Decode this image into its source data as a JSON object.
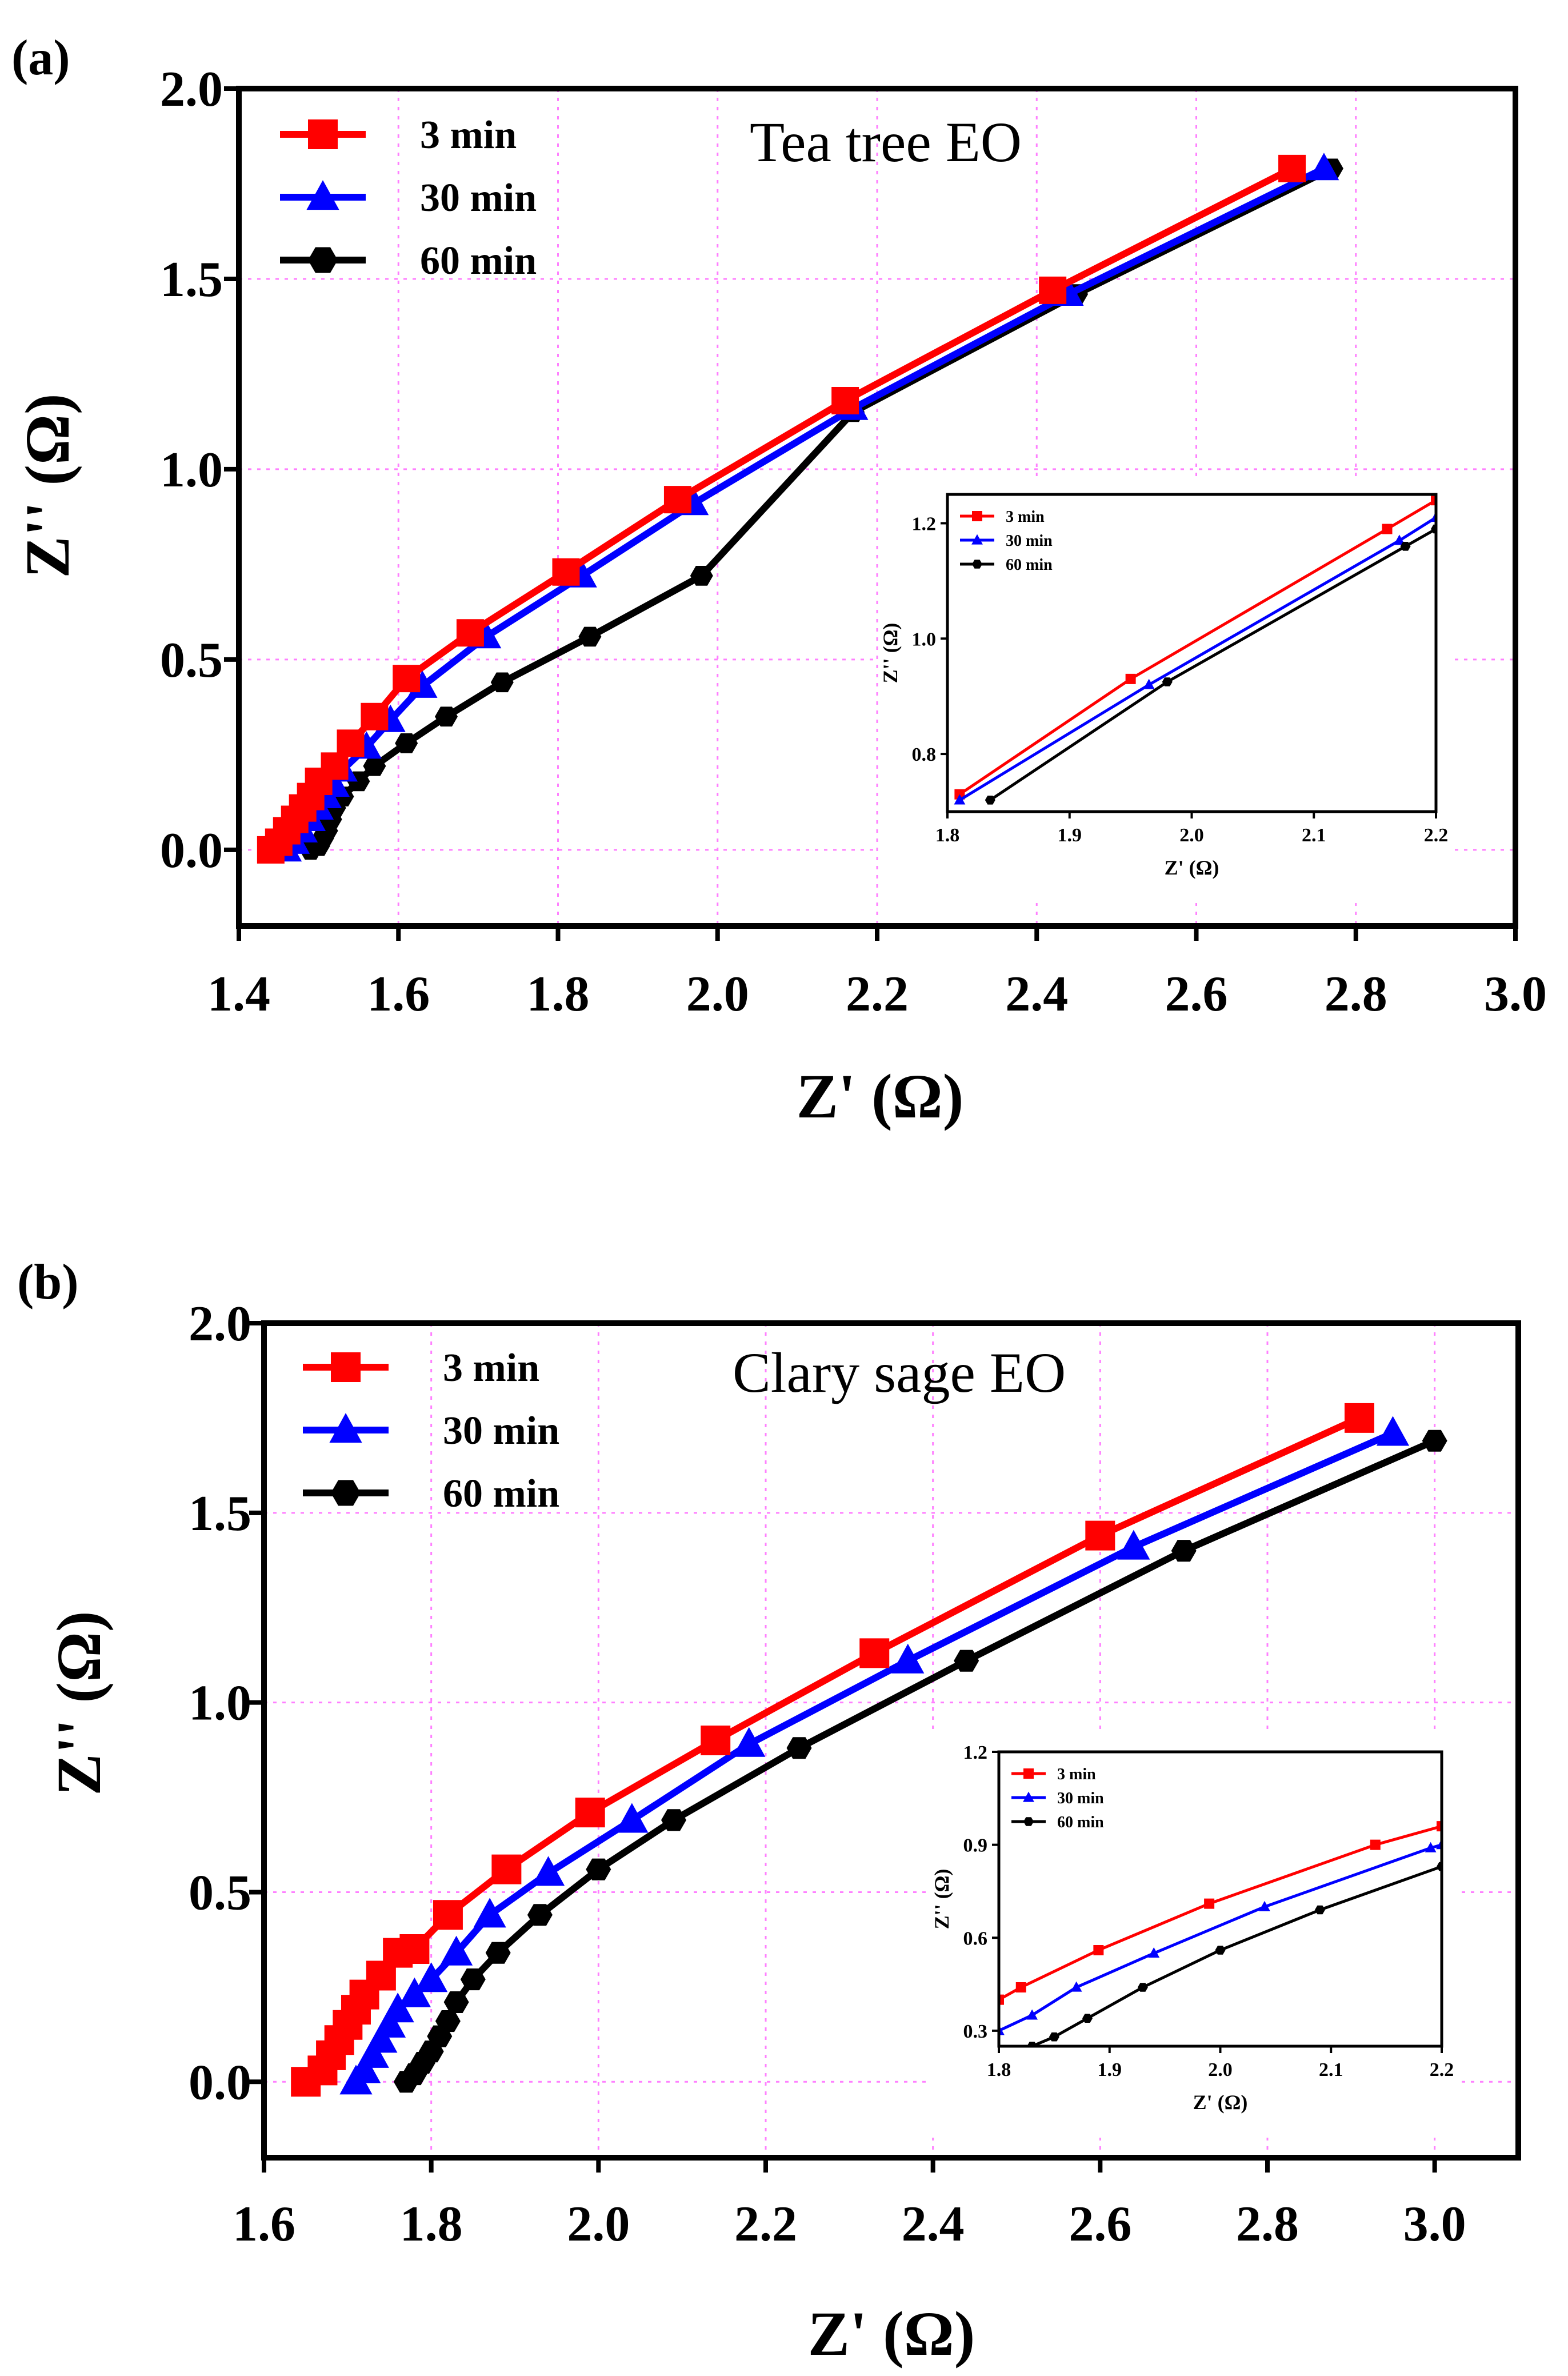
{
  "colors": {
    "3 min": "#ff0000",
    "30 min": "#0000ff",
    "60 min": "#000000",
    "grid": "#ff80ff"
  },
  "chart_data": [
    {
      "panel": "(a)",
      "type": "line",
      "annotation": "Tea tree EO",
      "xlabel": "Z' (Ω)",
      "ylabel": "Z'' (Ω)",
      "xlim": [
        1.4,
        3.0
      ],
      "ylim": [
        -0.2,
        2.0
      ],
      "xticks": [
        "1.4",
        "1.6",
        "1.8",
        "2.0",
        "2.2",
        "2.4",
        "2.6",
        "2.8",
        "3.0"
      ],
      "yticks": [
        "0.0",
        "0.5",
        "1.0",
        "1.5",
        "2.0"
      ],
      "series": [
        {
          "name": "3 min",
          "marker": "square",
          "x": [
            1.44,
            1.45,
            1.46,
            1.47,
            1.48,
            1.49,
            1.5,
            1.52,
            1.54,
            1.57,
            1.61,
            1.69,
            1.81,
            1.95,
            2.16,
            2.42,
            2.72
          ],
          "y": [
            0.0,
            0.02,
            0.05,
            0.08,
            0.11,
            0.14,
            0.18,
            0.22,
            0.28,
            0.35,
            0.45,
            0.57,
            0.73,
            0.92,
            1.18,
            1.47,
            1.79
          ]
        },
        {
          "name": "30 min",
          "marker": "triangle",
          "x": [
            1.46,
            1.47,
            1.48,
            1.49,
            1.5,
            1.51,
            1.52,
            1.53,
            1.56,
            1.59,
            1.63,
            1.71,
            1.83,
            1.97,
            2.17,
            2.44,
            2.76
          ],
          "y": [
            0.0,
            0.02,
            0.05,
            0.08,
            0.11,
            0.14,
            0.17,
            0.21,
            0.27,
            0.34,
            0.43,
            0.56,
            0.72,
            0.91,
            1.16,
            1.46,
            1.79
          ]
        },
        {
          "name": "60 min",
          "marker": "hexagon",
          "x": [
            1.49,
            1.5,
            1.505,
            1.51,
            1.515,
            1.52,
            1.53,
            1.55,
            1.57,
            1.61,
            1.66,
            1.73,
            1.84,
            1.98,
            2.17,
            2.45,
            2.77
          ],
          "y": [
            0.0,
            0.01,
            0.03,
            0.05,
            0.08,
            0.11,
            0.14,
            0.18,
            0.22,
            0.28,
            0.35,
            0.44,
            0.56,
            0.72,
            1.15,
            1.46,
            1.79
          ]
        }
      ],
      "inset": {
        "xlabel": "Z' (Ω)",
        "ylabel": "Z'' (Ω)",
        "xlim": [
          1.8,
          2.2
        ],
        "ylim": [
          0.7,
          1.25
        ],
        "xticks": [
          "1.8",
          "1.9",
          "2.0",
          "2.1",
          "2.2"
        ],
        "yticks": [
          "0.8",
          "1.0",
          "1.2"
        ],
        "series": [
          {
            "name": "3 min",
            "x": [
              1.81,
              1.95,
              2.16,
              2.2
            ],
            "y": [
              0.73,
              0.93,
              1.19,
              1.24
            ]
          },
          {
            "name": "30 min",
            "x": [
              1.81,
              1.965,
              2.17,
              2.2
            ],
            "y": [
              0.72,
              0.92,
              1.17,
              1.21
            ]
          },
          {
            "name": "60 min",
            "x": [
              1.835,
              1.98,
              2.175,
              2.2
            ],
            "y": [
              0.72,
              0.925,
              1.16,
              1.19
            ]
          }
        ]
      }
    },
    {
      "panel": "(b)",
      "type": "line",
      "annotation": "Clary sage EO",
      "xlabel": "Z' (Ω)",
      "ylabel": "Z'' (Ω)",
      "xlim": [
        1.6,
        3.1
      ],
      "ylim": [
        -0.2,
        2.0
      ],
      "xticks": [
        "1.6",
        "1.8",
        "2.0",
        "2.2",
        "2.4",
        "2.6",
        "2.8",
        "3.0"
      ],
      "yticks": [
        "0.0",
        "0.5",
        "1.0",
        "1.5",
        "2.0"
      ],
      "series": [
        {
          "name": "3 min",
          "marker": "square",
          "x": [
            1.65,
            1.67,
            1.68,
            1.69,
            1.7,
            1.71,
            1.72,
            1.74,
            1.76,
            1.78,
            1.82,
            1.89,
            1.99,
            2.14,
            2.33,
            2.6,
            2.91
          ],
          "y": [
            0.0,
            0.03,
            0.07,
            0.11,
            0.15,
            0.19,
            0.23,
            0.28,
            0.34,
            0.35,
            0.44,
            0.56,
            0.71,
            0.9,
            1.13,
            1.44,
            1.75
          ]
        },
        {
          "name": "30 min",
          "marker": "triangle",
          "x": [
            1.71,
            1.72,
            1.73,
            1.74,
            1.75,
            1.76,
            1.78,
            1.8,
            1.83,
            1.87,
            1.94,
            2.04,
            2.18,
            2.37,
            2.64,
            2.95
          ],
          "y": [
            0.0,
            0.03,
            0.07,
            0.11,
            0.15,
            0.19,
            0.23,
            0.27,
            0.34,
            0.44,
            0.55,
            0.69,
            0.89,
            1.11,
            1.41,
            1.71
          ]
        },
        {
          "name": "60 min",
          "marker": "hexagon",
          "x": [
            1.77,
            1.78,
            1.79,
            1.8,
            1.81,
            1.82,
            1.83,
            1.85,
            1.88,
            1.93,
            2.0,
            2.09,
            2.24,
            2.44,
            2.7,
            3.0
          ],
          "y": [
            0.0,
            0.02,
            0.05,
            0.08,
            0.12,
            0.16,
            0.21,
            0.27,
            0.34,
            0.44,
            0.56,
            0.69,
            0.88,
            1.11,
            1.4,
            1.69
          ]
        }
      ],
      "inset": {
        "xlabel": "Z' (Ω)",
        "ylabel": "Z'' (Ω)",
        "xlim": [
          1.8,
          2.2
        ],
        "ylim": [
          0.25,
          1.2
        ],
        "xticks": [
          "1.8",
          "1.9",
          "2.0",
          "2.1",
          "2.2"
        ],
        "yticks": [
          "0.3",
          "0.6",
          "0.9",
          "1.2"
        ],
        "series": [
          {
            "name": "3 min",
            "x": [
              1.8,
              1.82,
              1.89,
              1.99,
              2.14,
              2.2
            ],
            "y": [
              0.4,
              0.44,
              0.56,
              0.71,
              0.9,
              0.96
            ]
          },
          {
            "name": "30 min",
            "x": [
              1.8,
              1.83,
              1.87,
              1.94,
              2.04,
              2.19,
              2.2
            ],
            "y": [
              0.3,
              0.35,
              0.44,
              0.55,
              0.7,
              0.89,
              0.9
            ]
          },
          {
            "name": "60 min",
            "x": [
              1.83,
              1.85,
              1.88,
              1.93,
              2.0,
              2.09,
              2.2
            ],
            "y": [
              0.25,
              0.28,
              0.34,
              0.44,
              0.56,
              0.69,
              0.83
            ]
          }
        ]
      }
    }
  ]
}
